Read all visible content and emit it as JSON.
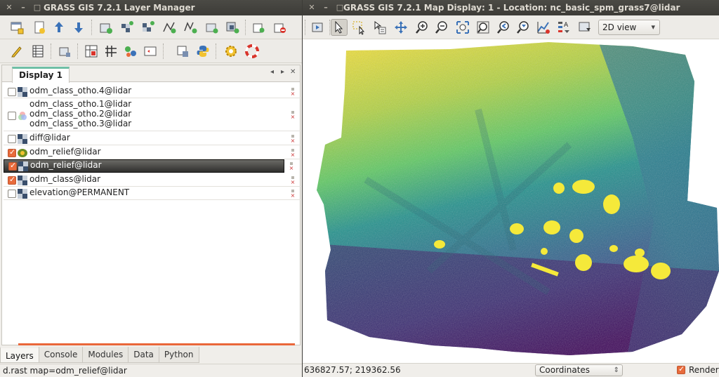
{
  "layer_manager": {
    "title": "GRASS GIS 7.2.1 Layer Manager",
    "window_buttons": [
      "✕",
      "–",
      "□"
    ],
    "display_tab": "Display 1",
    "layers": [
      {
        "names": [
          "odm_class_otho.4@lidar"
        ],
        "checked": false,
        "type": "raster",
        "selected": false
      },
      {
        "names": [
          "odm_class_otho.1@lidar",
          "odm_class_otho.2@lidar",
          "odm_class_otho.3@lidar"
        ],
        "checked": false,
        "type": "rgb",
        "selected": false
      },
      {
        "names": [
          "diff@lidar"
        ],
        "checked": false,
        "type": "raster",
        "selected": false
      },
      {
        "names": [
          "odm_relief@lidar"
        ],
        "checked": true,
        "type": "shaded",
        "selected": false
      },
      {
        "names": [
          "odm_relief@lidar"
        ],
        "checked": true,
        "type": "raster",
        "selected": true
      },
      {
        "names": [
          "odm_class@lidar"
        ],
        "checked": true,
        "type": "raster",
        "selected": false
      },
      {
        "names": [
          "elevation@PERMANENT"
        ],
        "checked": false,
        "type": "raster",
        "selected": false
      }
    ],
    "bottom_tabs": [
      "Layers",
      "Console",
      "Modules",
      "Data",
      "Python"
    ],
    "active_tab": "Layers",
    "status": "d.rast map=odm_relief@lidar"
  },
  "map_display": {
    "title": "GRASS GIS 7.2.1 Map Display: 1 - Location: nc_basic_spm_grass7@lidar",
    "window_buttons": [
      "✕",
      "–",
      "□"
    ],
    "view_mode": "2D view",
    "coordinates": "636827.57; 219362.56",
    "coord_mode": "Coordinates",
    "render_label": "Render",
    "render_checked": true
  },
  "colors": {
    "accent_tab": "#6fbfa6",
    "progress": "#e9673a",
    "checkbox_on": "#e86b3c",
    "viridis_low": "#440154",
    "viridis_mid": "#21918c",
    "viridis_high": "#fde725"
  }
}
